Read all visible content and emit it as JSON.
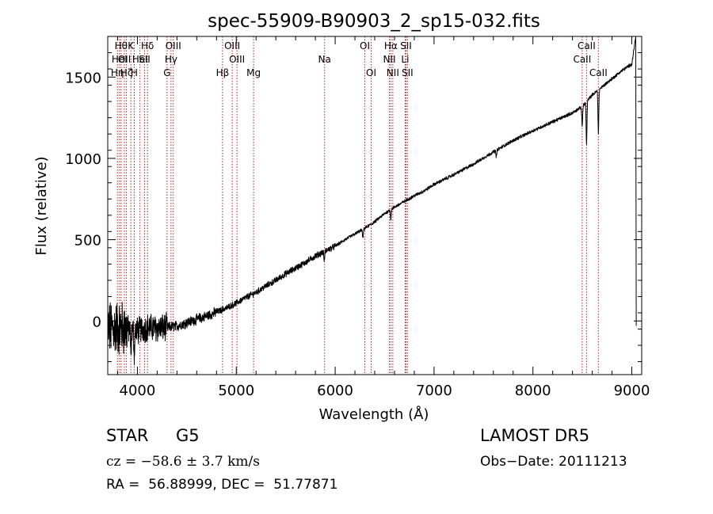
{
  "chart_data": {
    "type": "line",
    "title": "spec-55909-B90903_2_sp15-032.fits",
    "xlabel": "Wavelength (Å)",
    "ylabel": "Flux (relative)",
    "xlim": [
      3700,
      9100
    ],
    "ylim": [
      -330,
      1750
    ],
    "xticks": [
      4000,
      5000,
      6000,
      7000,
      8000,
      9000
    ],
    "yticks": [
      0,
      500,
      1000,
      1500
    ],
    "grid": false,
    "line_color": "#000000",
    "marker_color": "#b22222",
    "spectrum_anchors": {
      "x": [
        3700,
        3800,
        3900,
        4000,
        4100,
        4200,
        4300,
        4400,
        4500,
        4600,
        4700,
        4800,
        4900,
        5000,
        5100,
        5200,
        5300,
        5400,
        5500,
        5600,
        5700,
        5800,
        5900,
        6000,
        6100,
        6200,
        6300,
        6400,
        6500,
        6600,
        6700,
        6800,
        6900,
        7000,
        7200,
        7400,
        7600,
        7800,
        8000,
        8200,
        8400,
        8500,
        8600,
        8700,
        8800,
        8900,
        9000,
        9040
      ],
      "y": [
        -50,
        -40,
        -50,
        -60,
        -40,
        -45,
        -40,
        -30,
        -10,
        10,
        30,
        55,
        80,
        110,
        145,
        175,
        215,
        250,
        290,
        325,
        360,
        400,
        430,
        460,
        500,
        535,
        570,
        610,
        660,
        700,
        735,
        770,
        800,
        840,
        900,
        965,
        1040,
        1110,
        1170,
        1225,
        1280,
        1320,
        1390,
        1440,
        1490,
        1540,
        1580,
        1750
      ]
    },
    "noise_amplitude": [
      {
        "until": 3900,
        "value": 150
      },
      {
        "until": 4300,
        "value": 75
      },
      {
        "until": 4800,
        "value": 28
      },
      {
        "until": 6000,
        "value": 17
      },
      {
        "until": 9100,
        "value": 9
      }
    ],
    "absorption_features": [
      {
        "x": 3934,
        "depth": 140
      },
      {
        "x": 3968,
        "depth": 140
      },
      {
        "x": 5890,
        "depth": 55
      },
      {
        "x": 6280,
        "depth": 55
      },
      {
        "x": 6563,
        "depth": 60
      },
      {
        "x": 7630,
        "depth": 40
      },
      {
        "x": 8498,
        "depth": 120
      },
      {
        "x": 8542,
        "depth": 260
      },
      {
        "x": 8662,
        "depth": 260
      }
    ],
    "line_markers": [
      {
        "x": 3798,
        "label": "Hη",
        "row": 2
      },
      {
        "x": 3819,
        "label": "HeI",
        "row": 1
      },
      {
        "x": 3835,
        "label": "Hθ",
        "row": 0
      },
      {
        "x": 3868,
        "label": "OII",
        "row": 1
      },
      {
        "x": 3889,
        "label": "Hζ",
        "row": 2
      },
      {
        "x": 3934,
        "label": "K",
        "row": 0
      },
      {
        "x": 3968,
        "label": "H",
        "row": 2
      },
      {
        "x": 4026,
        "label": "HeI",
        "row": 1
      },
      {
        "x": 4072,
        "label": "SII",
        "row": 1
      },
      {
        "x": 4102,
        "label": "Hδ",
        "row": 0
      },
      {
        "x": 4300,
        "label": "G",
        "row": 2
      },
      {
        "x": 4340,
        "label": "Hγ",
        "row": 1
      },
      {
        "x": 4363,
        "label": "OIII",
        "row": 0
      },
      {
        "x": 4861,
        "label": "Hβ",
        "row": 2
      },
      {
        "x": 4959,
        "label": "OIII",
        "row": 0
      },
      {
        "x": 5007,
        "label": "OIII",
        "row": 1
      },
      {
        "x": 5175,
        "label": "Mg",
        "row": 2
      },
      {
        "x": 5893,
        "label": "Na",
        "row": 1
      },
      {
        "x": 6300,
        "label": "OI",
        "row": 0
      },
      {
        "x": 6364,
        "label": "OI",
        "row": 2
      },
      {
        "x": 6548,
        "label": "NII",
        "row": 1
      },
      {
        "x": 6563,
        "label": "Hα",
        "row": 0
      },
      {
        "x": 6583,
        "label": "NII",
        "row": 2
      },
      {
        "x": 6708,
        "label": "Li",
        "row": 1
      },
      {
        "x": 6716,
        "label": "SII",
        "row": 0
      },
      {
        "x": 6731,
        "label": "SII",
        "row": 2
      },
      {
        "x": 8498,
        "label": "CaII",
        "row": 1
      },
      {
        "x": 8542,
        "label": "CaII",
        "row": 0
      },
      {
        "x": 8662,
        "label": "CaII",
        "row": 2
      }
    ]
  },
  "info": {
    "class": "STAR",
    "subclass": "G5",
    "survey": "LAMOST DR5",
    "redshift": "cz = −58.6 ± 3.7 km/s",
    "obs_date": "Obs−Date: 20111213",
    "coords": "RA =  56.88999, DEC =  51.77871"
  }
}
